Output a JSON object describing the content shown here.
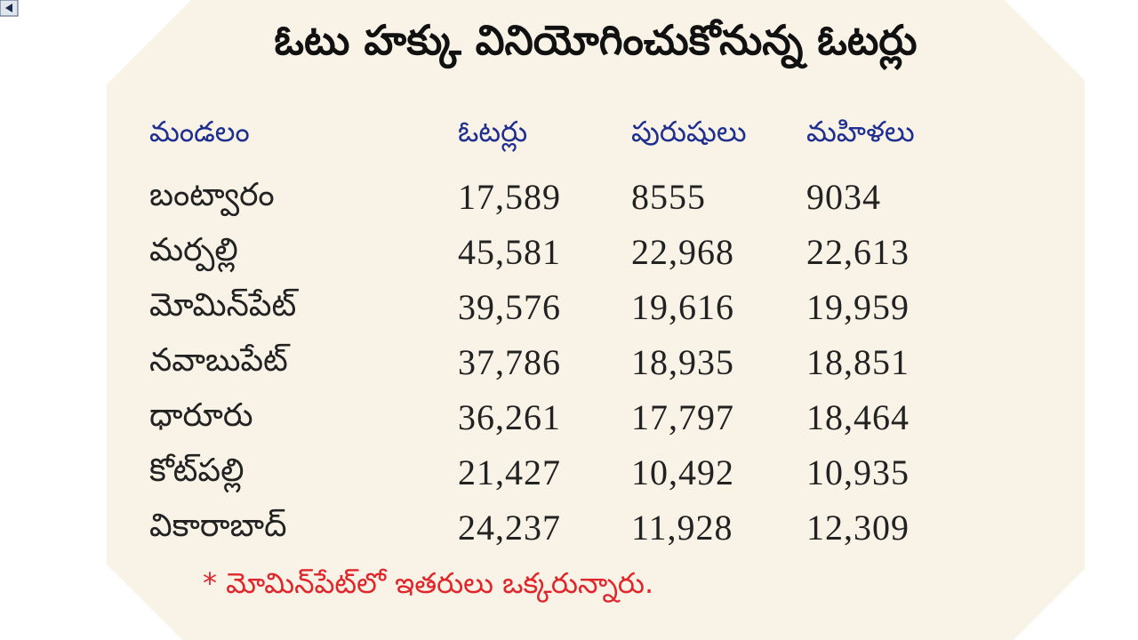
{
  "title": "ఓటు హక్కు వినియోగించుకోనున్న ఓటర్లు",
  "table": {
    "header": [
      "మండలం",
      "ఓటర్లు",
      "పురుషులు",
      "మహిళలు"
    ],
    "rows": [
      [
        "బంట్వారం",
        "17,589",
        "8555",
        "9034"
      ],
      [
        "మర్పల్లి",
        "45,581",
        "22,968",
        "22,613"
      ],
      [
        "మోమిన్‌పేట్",
        "39,576",
        "19,616",
        "19,959"
      ],
      [
        "నవాబుపేట్",
        "37,786",
        "18,935",
        "18,851"
      ],
      [
        "ధారూరు",
        "36,261",
        "17,797",
        "18,464"
      ],
      [
        "కోట్‌పల్లి",
        "21,427",
        "10,492",
        "10,935"
      ],
      [
        "వికారాబాద్",
        "24,237",
        "11,928",
        "12,309"
      ]
    ]
  },
  "footnote": "* మోమిన్‌పేట్‌లో ఇతరులు ఒక్కరున్నారు."
}
